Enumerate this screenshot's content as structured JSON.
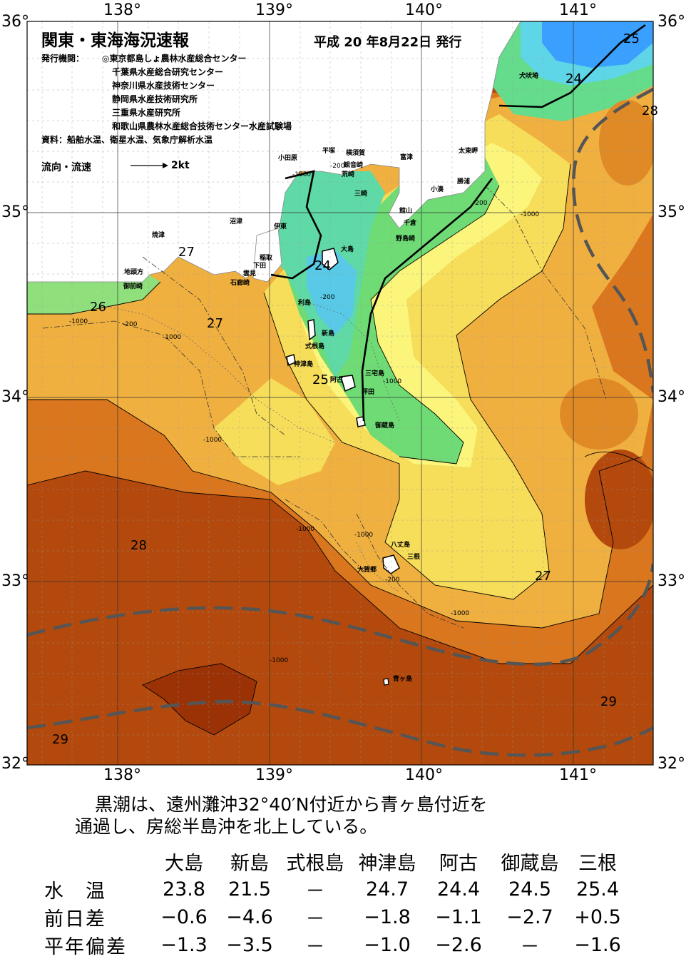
{
  "title": "関東・東海海況速報",
  "issue_date": "平成 20 年8月22日 発行",
  "issuers_label": "発行機関：",
  "issuers": [
    "◎東京都島しょ農林水産総合センター",
    "千葉県水産総合研究センター",
    "神奈川県水産技術センター",
    "静岡県水産技術研究所",
    "三重県水産研究所",
    "和歌山県農林水産総合技術センター水産試験場"
  ],
  "sources": "資料：船舶水温、衛星水温、気象庁解析水温",
  "flow_legend": {
    "label": "流向・流速",
    "speed": "2kt"
  },
  "lon_labels": [
    "138°",
    "139°",
    "140°",
    "141°"
  ],
  "lat_labels": [
    "36°",
    "35°",
    "34°",
    "33°",
    "32°"
  ],
  "isotherm_labels": [
    "25",
    "24",
    "28",
    "27",
    "26",
    "27",
    "24",
    "25",
    "28",
    "27",
    "29",
    "29"
  ],
  "depth_labels": [
    "-1000",
    "-200",
    "-1000",
    "-200",
    "-1000",
    "-200",
    "-1000",
    "-1000",
    "-1000",
    "-1000",
    "-200",
    "-1000",
    "-1000",
    "-1000",
    "-200"
  ],
  "places": [
    "犬吠埼",
    "太東岬",
    "勝浦",
    "小湊",
    "富津",
    "平塚",
    "横須賀",
    "観音崎",
    "荒崎",
    "三崎",
    "館山",
    "千倉",
    "野島崎",
    "小田原",
    "伊東",
    "沼津",
    "焼津",
    "稲取",
    "下田",
    "雲見",
    "石廊崎",
    "地頭方",
    "御前崎",
    "大島",
    "利島",
    "新島",
    "式根島",
    "神津島",
    "三宅島",
    "阿古",
    "坪田",
    "御蔵島",
    "八丈島",
    "三根",
    "大賀郷",
    "青ヶ島"
  ],
  "summary": [
    "黒潮は、遠州灘沖32°40′N付近から青ヶ島付近を",
    "通過し、房総半島沖を北上している。"
  ],
  "table": {
    "columns": [
      "大島",
      "新島",
      "式根島",
      "神津島",
      "阿古",
      "御蔵島",
      "三根"
    ],
    "rows": [
      {
        "label": "水　温",
        "values": [
          "23.8",
          "21.5",
          "－",
          "24.7",
          "24.4",
          "24.5",
          "25.4"
        ]
      },
      {
        "label": "前日差",
        "values": [
          "−0.6",
          "−4.6",
          "－",
          "−1.8",
          "−1.1",
          "−2.7",
          "+0.5"
        ]
      },
      {
        "label": "平年偏差",
        "values": [
          "−1.3",
          "−3.5",
          "－",
          "−1.0",
          "−2.6",
          "－",
          "−1.6"
        ]
      }
    ]
  },
  "colors": {
    "t24": "#2f93ff",
    "t25": "#58d6ea",
    "t25b": "#6fdf7c",
    "t26": "#eef07a",
    "t27": "#f3c24a",
    "t28": "#e08a26",
    "t29": "#c05a10",
    "t30": "#9a3206",
    "kuroshio": "#555555"
  }
}
